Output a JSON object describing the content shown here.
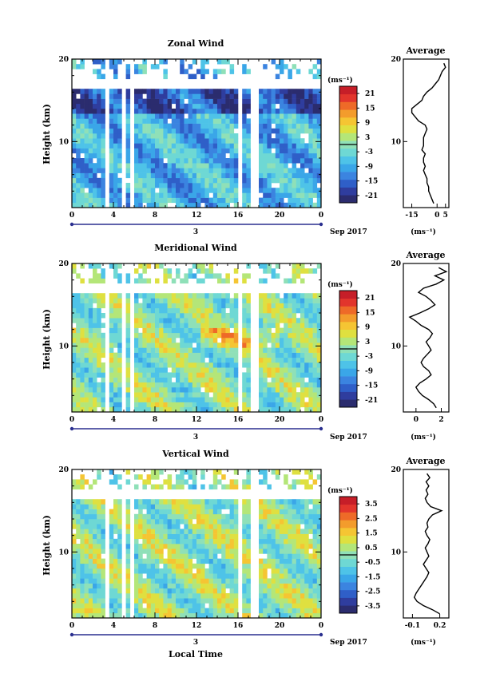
{
  "chart_data": [
    {
      "type": "heatmap",
      "title": "Zonal Wind",
      "ylabel": "Height (km)",
      "yticks": [
        "10",
        "20"
      ],
      "ylim": [
        2,
        20
      ],
      "xticks": [
        "0",
        "4",
        "8",
        "12",
        "16",
        "20",
        "0"
      ],
      "xlim": [
        0,
        24
      ],
      "date_day": "3",
      "date_label": "Sep 2017",
      "colorbar_unit": "(ms⁻¹)",
      "colorbar_ticks": [
        "21",
        "15",
        "9",
        "3",
        "-3",
        "-9",
        "-15",
        "-21"
      ],
      "colorbar_range": [
        -24,
        24
      ],
      "field_center": -8,
      "avg_title": "Average",
      "avg_xticks": [
        "-15",
        "0",
        "5"
      ],
      "avg_xlim": [
        -20,
        7
      ],
      "avg_xlabel": "(ms⁻¹)",
      "avg_profile": [
        {
          "h": 2.5,
          "v": -2
        },
        {
          "h": 3,
          "v": -3
        },
        {
          "h": 3.5,
          "v": -4
        },
        {
          "h": 4,
          "v": -5
        },
        {
          "h": 4.5,
          "v": -5
        },
        {
          "h": 5,
          "v": -6
        },
        {
          "h": 5.5,
          "v": -6
        },
        {
          "h": 6,
          "v": -7
        },
        {
          "h": 6.5,
          "v": -8
        },
        {
          "h": 7,
          "v": -7
        },
        {
          "h": 7.5,
          "v": -8
        },
        {
          "h": 8,
          "v": -8
        },
        {
          "h": 8.5,
          "v": -7
        },
        {
          "h": 9,
          "v": -9
        },
        {
          "h": 9.5,
          "v": -8
        },
        {
          "h": 10,
          "v": -8
        },
        {
          "h": 10.5,
          "v": -8
        },
        {
          "h": 11,
          "v": -7
        },
        {
          "h": 11.5,
          "v": -6
        },
        {
          "h": 12,
          "v": -7
        },
        {
          "h": 12.5,
          "v": -11
        },
        {
          "h": 13,
          "v": -13
        },
        {
          "h": 13.5,
          "v": -15
        },
        {
          "h": 14,
          "v": -15
        },
        {
          "h": 14.5,
          "v": -12
        },
        {
          "h": 15,
          "v": -9
        },
        {
          "h": 15.5,
          "v": -8
        },
        {
          "h": 16,
          "v": -6
        },
        {
          "h": 16.5,
          "v": -3
        },
        {
          "h": 17,
          "v": -1
        },
        {
          "h": 17.5,
          "v": 1
        },
        {
          "h": 18,
          "v": 2
        },
        {
          "h": 18.5,
          "v": 3
        },
        {
          "h": 19,
          "v": 5
        },
        {
          "h": 19.5,
          "v": 4
        }
      ]
    },
    {
      "type": "heatmap",
      "title": "Meridional Wind",
      "ylabel": "Height (km)",
      "yticks": [
        "10",
        "20"
      ],
      "ylim": [
        2,
        20
      ],
      "xticks": [
        "0",
        "4",
        "8",
        "12",
        "16",
        "20",
        "0"
      ],
      "xlim": [
        0,
        24
      ],
      "date_day": "3",
      "date_label": "Sep 2017",
      "colorbar_unit": "(ms⁻¹)",
      "colorbar_ticks": [
        "21",
        "15",
        "9",
        "3",
        "-3",
        "-9",
        "-15",
        "-21"
      ],
      "colorbar_range": [
        -24,
        24
      ],
      "field_center": 0,
      "avg_title": "Average",
      "avg_xticks": [
        "0",
        "2"
      ],
      "avg_xlim": [
        -1,
        2.6
      ],
      "avg_xlabel": "(ms⁻¹)",
      "avg_profile": [
        {
          "h": 2.5,
          "v": 1.6
        },
        {
          "h": 3,
          "v": 1.4
        },
        {
          "h": 3.5,
          "v": 1.0
        },
        {
          "h": 4,
          "v": 0.5
        },
        {
          "h": 4.5,
          "v": 0.2
        },
        {
          "h": 5,
          "v": 0.0
        },
        {
          "h": 5.5,
          "v": 0.3
        },
        {
          "h": 6,
          "v": 0.8
        },
        {
          "h": 6.5,
          "v": 1.2
        },
        {
          "h": 7,
          "v": 1.0
        },
        {
          "h": 7.5,
          "v": 0.6
        },
        {
          "h": 8,
          "v": 0.4
        },
        {
          "h": 8.5,
          "v": 0.6
        },
        {
          "h": 9,
          "v": 0.9
        },
        {
          "h": 9.5,
          "v": 1.2
        },
        {
          "h": 10,
          "v": 1.0
        },
        {
          "h": 10.5,
          "v": 0.8
        },
        {
          "h": 11,
          "v": 1.1
        },
        {
          "h": 11.5,
          "v": 1.3
        },
        {
          "h": 12,
          "v": 1.0
        },
        {
          "h": 12.5,
          "v": 0.4
        },
        {
          "h": 13,
          "v": 0.0
        },
        {
          "h": 13.5,
          "v": -0.5
        },
        {
          "h": 14,
          "v": 0.3
        },
        {
          "h": 14.5,
          "v": 1.0
        },
        {
          "h": 15,
          "v": 1.5
        },
        {
          "h": 15.5,
          "v": 1.2
        },
        {
          "h": 16,
          "v": 0.8
        },
        {
          "h": 16.5,
          "v": 0.2
        },
        {
          "h": 17,
          "v": 0.6
        },
        {
          "h": 17.5,
          "v": 1.6
        },
        {
          "h": 18,
          "v": 2.2
        },
        {
          "h": 18.5,
          "v": 1.5
        },
        {
          "h": 19,
          "v": 2.4
        },
        {
          "h": 19.5,
          "v": 1.8
        }
      ]
    },
    {
      "type": "heatmap",
      "title": "Vertical Wind",
      "ylabel": "Height (km)",
      "yticks": [
        "10",
        "20"
      ],
      "ylim": [
        2,
        20
      ],
      "xticks": [
        "0",
        "4",
        "8",
        "12",
        "16",
        "20",
        "0"
      ],
      "xlim": [
        0,
        24
      ],
      "xlabel": "Local Time",
      "date_day": "3",
      "date_label": "Sep 2017",
      "colorbar_unit": "(ms⁻¹)",
      "colorbar_ticks": [
        "3.5",
        "2.5",
        "1.5",
        "0.5",
        "-0.5",
        "-1.5",
        "-2.5",
        "-3.5"
      ],
      "colorbar_range": [
        -4,
        4
      ],
      "field_center": 0.1,
      "avg_title": "Average",
      "avg_xticks": [
        "-0.1",
        "0.2"
      ],
      "avg_xlim": [
        -0.2,
        0.3
      ],
      "avg_xlabel": "(ms⁻¹)",
      "avg_profile": [
        {
          "h": 2.5,
          "v": 0.2
        },
        {
          "h": 3,
          "v": 0.12
        },
        {
          "h": 3.5,
          "v": 0.02
        },
        {
          "h": 4,
          "v": -0.05
        },
        {
          "h": 4.5,
          "v": -0.08
        },
        {
          "h": 5,
          "v": -0.06
        },
        {
          "h": 5.5,
          "v": -0.03
        },
        {
          "h": 6,
          "v": 0.0
        },
        {
          "h": 6.5,
          "v": 0.03
        },
        {
          "h": 7,
          "v": 0.06
        },
        {
          "h": 7.5,
          "v": 0.08
        },
        {
          "h": 8,
          "v": 0.05
        },
        {
          "h": 8.5,
          "v": 0.02
        },
        {
          "h": 9,
          "v": 0.05
        },
        {
          "h": 9.5,
          "v": 0.08
        },
        {
          "h": 10,
          "v": 0.06
        },
        {
          "h": 10.5,
          "v": 0.04
        },
        {
          "h": 11,
          "v": 0.07
        },
        {
          "h": 11.5,
          "v": 0.09
        },
        {
          "h": 12,
          "v": 0.06
        },
        {
          "h": 12.5,
          "v": 0.04
        },
        {
          "h": 13,
          "v": 0.07
        },
        {
          "h": 13.5,
          "v": 0.06
        },
        {
          "h": 14,
          "v": 0.08
        },
        {
          "h": 14.5,
          "v": 0.12
        },
        {
          "h": 15,
          "v": 0.22
        },
        {
          "h": 15.5,
          "v": 0.1
        },
        {
          "h": 16,
          "v": 0.06
        },
        {
          "h": 16.5,
          "v": 0.04
        },
        {
          "h": 17,
          "v": 0.07
        },
        {
          "h": 17.5,
          "v": 0.05
        },
        {
          "h": 18,
          "v": 0.08
        },
        {
          "h": 18.5,
          "v": 0.05
        },
        {
          "h": 19,
          "v": 0.09
        },
        {
          "h": 19.5,
          "v": 0.06
        }
      ]
    }
  ]
}
